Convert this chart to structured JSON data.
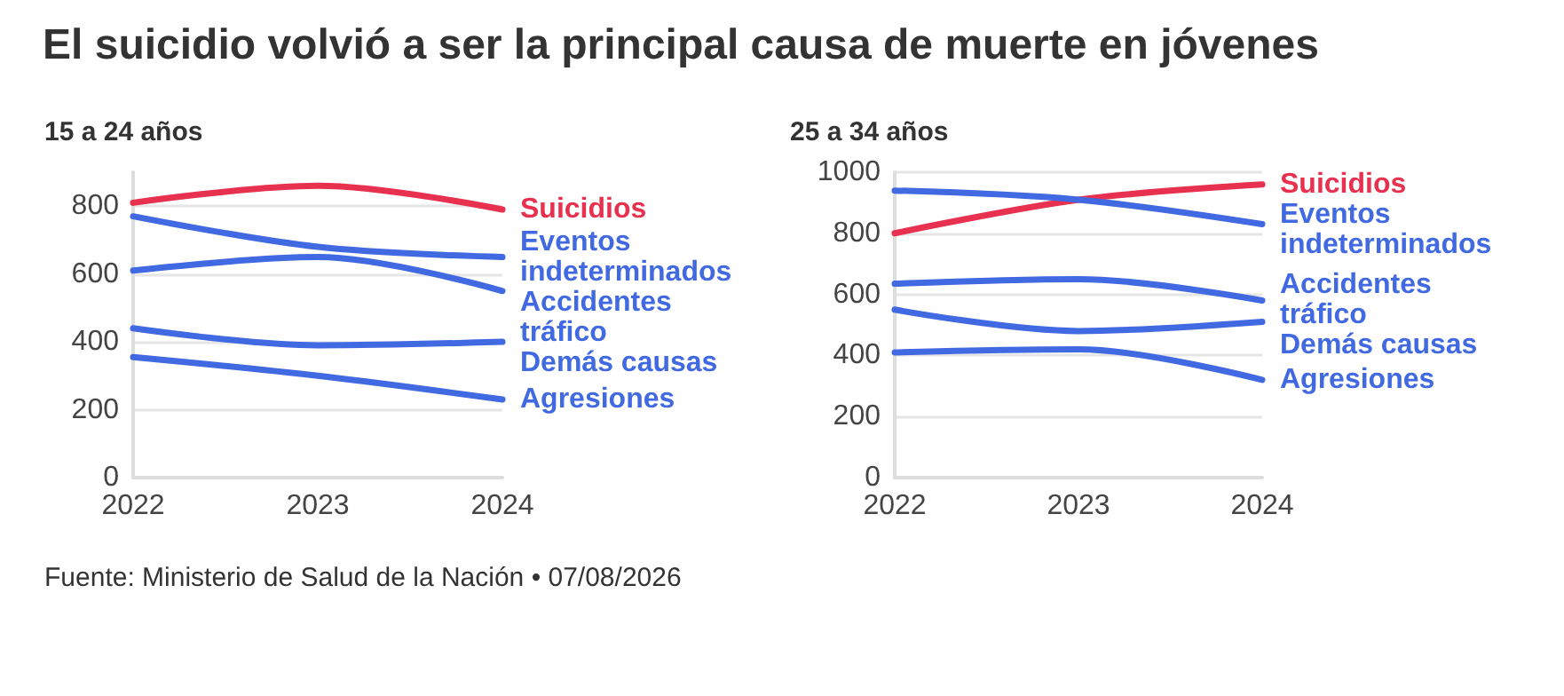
{
  "chart_data": [
    {
      "type": "line",
      "title": "El suicidio volvió a ser la principal causa de muerte en jóvenes",
      "subtitle": "15 a 24 años",
      "annotations": [
        "Fuente: Ministerio de Salud de la Nación • 07/08/2026"
      ],
      "categories": [
        "2022",
        "2023",
        "2024"
      ],
      "ylim": [
        0,
        900
      ],
      "yticks": [
        0,
        200,
        400,
        600,
        800
      ],
      "grid": "y",
      "legend": false,
      "marker": "none",
      "series": [
        {
          "name": "Suicidios",
          "color": "#e8304f",
          "values": [
            810,
            860,
            790
          ]
        },
        {
          "name": "Eventos indeterminados",
          "color": "#4169e1",
          "values": [
            770,
            680,
            650
          ]
        },
        {
          "name": "Accidentes tráfico",
          "color": "#4169e1",
          "values": [
            610,
            650,
            550
          ]
        },
        {
          "name": "Demás causas",
          "color": "#4169e1",
          "values": [
            440,
            390,
            400
          ]
        },
        {
          "name": "Agresiones",
          "color": "#4169e1",
          "values": [
            355,
            300,
            230
          ]
        }
      ]
    },
    {
      "type": "line",
      "subtitle": "25 a 34 años",
      "categories": [
        "2022",
        "2023",
        "2024"
      ],
      "ylim": [
        0,
        1000
      ],
      "yticks": [
        0,
        200,
        400,
        600,
        800,
        1000
      ],
      "grid": "y",
      "legend": false,
      "marker": "none",
      "series": [
        {
          "name": "Suicidios",
          "color": "#e8304f",
          "values": [
            800,
            910,
            960
          ]
        },
        {
          "name": "Eventos indeterminados",
          "color": "#4169e1",
          "values": [
            940,
            910,
            830
          ]
        },
        {
          "name": "Accidentes tráfico",
          "color": "#4169e1",
          "values": [
            635,
            650,
            580
          ]
        },
        {
          "name": "Demás causas",
          "color": "#4169e1",
          "values": [
            550,
            480,
            510
          ]
        },
        {
          "name": "Agresiones",
          "color": "#4169e1",
          "values": [
            410,
            420,
            320
          ]
        }
      ]
    }
  ]
}
